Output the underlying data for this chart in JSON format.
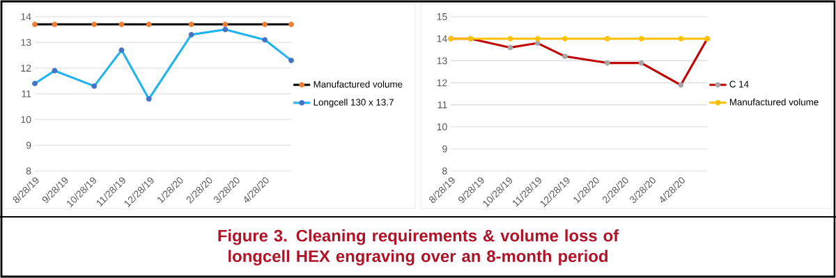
{
  "chart_data": [
    {
      "type": "line",
      "title": "Figure 3. Cleaning requirements & volume loss of longcell HEX engraving over an 8-month period",
      "x": [
        "2019-08-28",
        "2019-09-18",
        "2019-10-30",
        "2019-11-28",
        "2019-12-27",
        "2020-02-10",
        "2020-03-17",
        "2020-04-28",
        "2020-05-26"
      ],
      "xlim": [
        "2019-08-28",
        "2020-05-26"
      ],
      "xticks": [
        {
          "value": "2019-08-28",
          "label": "8/28/19"
        },
        {
          "value": "2019-09-28",
          "label": "9/28/19"
        },
        {
          "value": "2019-10-28",
          "label": "10/28/19"
        },
        {
          "value": "2019-11-28",
          "label": "11/28/19"
        },
        {
          "value": "2019-12-28",
          "label": "12/28/19"
        },
        {
          "value": "2020-01-28",
          "label": "1/28/20"
        },
        {
          "value": "2020-02-28",
          "label": "2/28/20"
        },
        {
          "value": "2020-03-28",
          "label": "3/28/20"
        },
        {
          "value": "2020-04-28",
          "label": "4/28/20"
        }
      ],
      "ylim": [
        8,
        14
      ],
      "yticks": [
        8,
        9,
        10,
        11,
        12,
        13,
        14
      ],
      "grid": "y",
      "legend": "right",
      "marker": "circle",
      "line_style": "solid",
      "series": [
        {
          "name": "Manufactured volume",
          "color": "#000000",
          "colors": [
            "#ed7d31",
            "#ed7d31",
            "#ed7d31",
            "#ed7d31",
            "#ed7d31",
            "#ed7d31",
            "#ed7d31",
            "#ed7d31",
            "#ed7d31"
          ],
          "values": [
            13.7,
            13.7,
            13.7,
            13.7,
            13.7,
            13.7,
            13.7,
            13.7,
            13.7
          ]
        },
        {
          "name": "Longcell 130 x 13.7",
          "color": "#1fb4f0",
          "colors": [
            "#4472c4",
            "#4472c4",
            "#4472c4",
            "#4472c4",
            "#4472c4",
            "#4472c4",
            "#4472c4",
            "#4472c4",
            "#4472c4"
          ],
          "values": [
            11.4,
            11.9,
            11.3,
            12.7,
            10.8,
            13.3,
            13.5,
            13.1,
            12.3
          ]
        }
      ]
    },
    {
      "type": "line",
      "x": [
        "2019-08-28",
        "2019-09-18",
        "2019-10-30",
        "2019-11-28",
        "2019-12-27",
        "2020-02-10",
        "2020-03-17",
        "2020-04-28",
        "2020-05-26"
      ],
      "xlim": [
        "2019-08-28",
        "2020-05-26"
      ],
      "xticks": [
        {
          "value": "2019-08-28",
          "label": "8/28/19"
        },
        {
          "value": "2019-09-28",
          "label": "9/28/19"
        },
        {
          "value": "2019-10-28",
          "label": "10/28/19"
        },
        {
          "value": "2019-11-28",
          "label": "11/28/19"
        },
        {
          "value": "2019-12-28",
          "label": "12/28/19"
        },
        {
          "value": "2020-01-28",
          "label": "1/28/20"
        },
        {
          "value": "2020-02-28",
          "label": "2/28/20"
        },
        {
          "value": "2020-03-28",
          "label": "3/28/20"
        },
        {
          "value": "2020-04-28",
          "label": "4/28/20"
        }
      ],
      "ylim": [
        8,
        15
      ],
      "yticks": [
        8,
        9,
        10,
        11,
        12,
        13,
        14,
        15
      ],
      "grid": "y",
      "legend": "right",
      "marker": "circle",
      "line_style": "solid",
      "series": [
        {
          "name": "C 14",
          "color": "#c00000",
          "colors": [
            "#a5a5a5",
            "#a5a5a5",
            "#a5a5a5",
            "#a5a5a5",
            "#a5a5a5",
            "#a5a5a5",
            "#a5a5a5",
            "#a5a5a5",
            "#a5a5a5"
          ],
          "values": [
            14,
            14,
            13.6,
            13.8,
            13.2,
            12.9,
            12.9,
            11.9,
            14
          ]
        },
        {
          "name": "Manufactured volume",
          "color": "#ffc000",
          "colors": [
            "#ffc000",
            "#ffc000",
            "#ffc000",
            "#ffc000",
            "#ffc000",
            "#ffc000",
            "#ffc000",
            "#ffc000",
            "#ffc000"
          ],
          "values": [
            14,
            14,
            14,
            14,
            14,
            14,
            14,
            14,
            14
          ]
        }
      ]
    }
  ]
}
